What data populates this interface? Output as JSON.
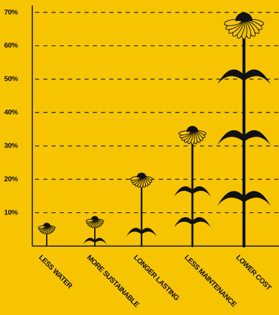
{
  "chart_data": {
    "type": "pictogram",
    "categories": [
      "LESS WATER",
      "MORE SUSTAINABLE",
      "LONGER LASTING",
      "LESS MAINTENANCE",
      "LOWER COST"
    ],
    "values": [
      7,
      9,
      22,
      36,
      70
    ],
    "color": "#111111",
    "ylim": [
      0,
      70
    ],
    "yticks": [
      {
        "value": 10,
        "label": "10%"
      },
      {
        "value": 20,
        "label": "20%"
      },
      {
        "value": 30,
        "label": "30%"
      },
      {
        "value": 40,
        "label": "40%"
      },
      {
        "value": 50,
        "label": "50%"
      },
      {
        "value": 60,
        "label": "60%"
      },
      {
        "value": 70,
        "label": "70%"
      }
    ],
    "grid": true
  }
}
